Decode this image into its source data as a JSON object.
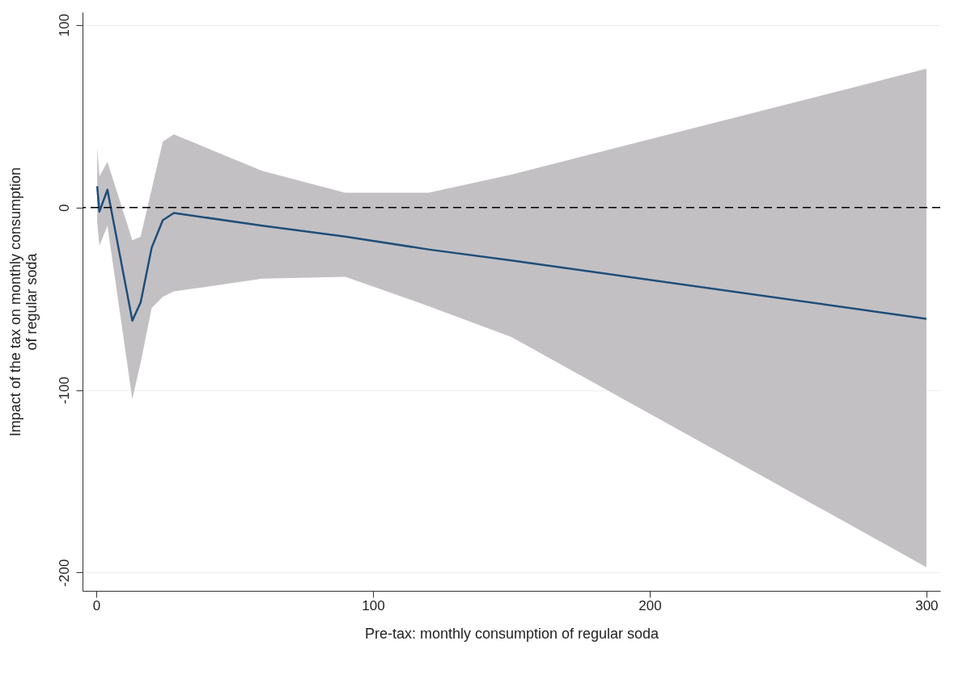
{
  "chart_data": {
    "type": "line",
    "xlabel": "Pre-tax: monthly consumption of regular soda",
    "ylabel": "Impact of the tax on monthly consumption\nof regular soda",
    "x": [
      0.3,
      1.1,
      4,
      13,
      16,
      20,
      24,
      28,
      60,
      90,
      120,
      150,
      300
    ],
    "series": [
      {
        "color": "#1f4e79",
        "values": [
          11.6,
          -2.3,
          9.7,
          -62,
          -52,
          -22,
          -7,
          -3,
          -10,
          -16,
          -23,
          -29,
          -61
        ],
        "lower": [
          -8,
          -21,
          -10,
          -105,
          -85,
          -55,
          -49,
          -46,
          -39,
          -38,
          -54,
          -71,
          -197
        ],
        "upper": [
          33,
          17,
          25,
          -18,
          -16,
          10,
          36,
          40,
          20,
          8,
          8,
          18,
          76
        ]
      }
    ],
    "xlim": [
      -5,
      305
    ],
    "ylim": [
      -210,
      107
    ],
    "xticks": [
      0,
      100,
      200,
      300
    ],
    "yticks": [
      -200,
      -100,
      0,
      100
    ],
    "grid": "y",
    "marker": "none",
    "line_style": "solid",
    "ref_lines": [
      {
        "axis": "y",
        "value": 0,
        "color": "#000000",
        "line_style": "dashed"
      }
    ]
  }
}
